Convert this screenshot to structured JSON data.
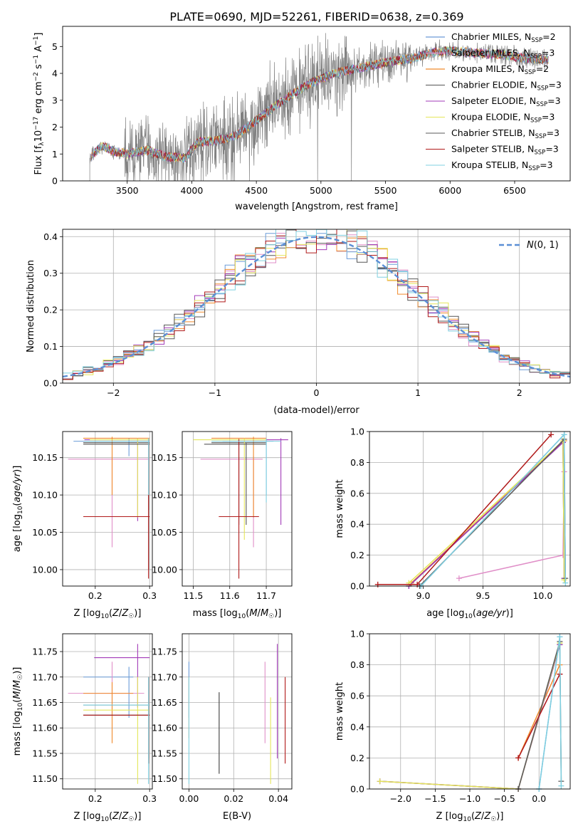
{
  "title": "PLATE=0690, MJD=52261, FIBERID=0638, z=0.369",
  "series": [
    {
      "name": "Chabrier MILES",
      "nssp": "2",
      "color": "#6a9bd8"
    },
    {
      "name": "Salpeter MILES",
      "nssp": "3",
      "color": "#e08fc8"
    },
    {
      "name": "Kroupa MILES",
      "nssp": "2",
      "color": "#f08a2c"
    },
    {
      "name": "Chabrier ELODIE",
      "nssp": "3",
      "color": "#555555"
    },
    {
      "name": "Salpeter ELODIE",
      "nssp": "3",
      "color": "#a23ab8"
    },
    {
      "name": "Kroupa ELODIE",
      "nssp": "3",
      "color": "#e5e65a"
    },
    {
      "name": "Chabrier STELIB",
      "nssp": "3",
      "color": "#5a5a5a"
    },
    {
      "name": "Salpeter STELIB",
      "nssp": "3",
      "color": "#b01a1a"
    },
    {
      "name": "Kroupa STELIB",
      "nssp": "3",
      "color": "#7fd0e0"
    }
  ],
  "legend_nssp_label": "N",
  "legend_nssp_sub": "SSP",
  "chart_data": [
    {
      "id": "spectrum",
      "type": "line",
      "title": "PLATE=0690, MJD=52261, FIBERID=0638, z=0.369",
      "xlabel": "wavelength [Angstrom, rest frame]",
      "ylabel": "Flux [f_λ 10^-17 erg cm^-2 s^-1 A^-1]",
      "xlim": [
        3000,
        6930
      ],
      "ylim": [
        0,
        5.75
      ],
      "xticks": [
        3500,
        4000,
        4500,
        5000,
        5500,
        6000,
        6500
      ],
      "yticks": [
        0,
        1,
        2,
        3,
        4,
        5
      ],
      "data_color": "#808080",
      "data_x_range": [
        3210,
        6760
      ],
      "continuum": [
        [
          3210,
          0.85
        ],
        [
          3300,
          1.3
        ],
        [
          3400,
          1.1
        ],
        [
          3500,
          1.0
        ],
        [
          3650,
          1.15
        ],
        [
          3800,
          0.9
        ],
        [
          3950,
          0.85
        ],
        [
          4050,
          1.45
        ],
        [
          4200,
          1.5
        ],
        [
          4350,
          1.7
        ],
        [
          4500,
          2.25
        ],
        [
          4650,
          2.8
        ],
        [
          4800,
          3.3
        ],
        [
          4950,
          3.7
        ],
        [
          5100,
          4.0
        ],
        [
          5250,
          4.15
        ],
        [
          5400,
          4.3
        ],
        [
          5550,
          4.45
        ],
        [
          5700,
          4.55
        ],
        [
          5850,
          4.75
        ],
        [
          6000,
          4.85
        ],
        [
          6200,
          4.75
        ],
        [
          6400,
          4.7
        ],
        [
          6600,
          4.55
        ],
        [
          6760,
          4.5
        ]
      ],
      "legend": "top-right",
      "grid": false
    },
    {
      "id": "residuals",
      "type": "histogram",
      "xlabel": "(data-model)/error",
      "ylabel": "Normed distribution",
      "xlim": [
        -2.5,
        2.5
      ],
      "ylim": [
        0,
        0.42
      ],
      "xticks": [
        -2,
        -1,
        0,
        1,
        2
      ],
      "yticks": [
        0.0,
        0.1,
        0.2,
        0.3,
        0.4
      ],
      "bin_width": 0.1,
      "reference_label": "N(0,1)",
      "reference_color": "#5b8fd6",
      "legend": "top-right",
      "grid": true
    },
    {
      "id": "age_vs_Z",
      "type": "errorbar",
      "xlabel": "Z [log10(Z/Z☉)]",
      "ylabel": "age  [log10(age/yr)]",
      "xlim": [
        0.14,
        0.305
      ],
      "ylim": [
        9.978,
        10.185
      ],
      "xticks": [
        0.2,
        0.3
      ],
      "yticks": [
        10.0,
        10.05,
        10.1,
        10.15
      ],
      "points": [
        {
          "s": 0,
          "x": 0.262,
          "y": 10.172,
          "xe": [
            0.16,
            0.3
          ],
          "ye": [
            10.152,
            10.176
          ]
        },
        {
          "s": 1,
          "x": 0.231,
          "y": 10.148,
          "xe": [
            0.15,
            0.3
          ],
          "ye": [
            10.03,
            10.152
          ]
        },
        {
          "s": 2,
          "x": 0.231,
          "y": 10.176,
          "xe": [
            0.178,
            0.3
          ],
          "ye": [
            10.1,
            10.178
          ]
        },
        {
          "s": 3,
          "x": 0.298,
          "y": 10.17,
          "xe": [
            0.178,
            0.3
          ],
          "ye": [
            10.0,
            10.17
          ]
        },
        {
          "s": 4,
          "x": 0.278,
          "y": 10.174,
          "xe": [
            0.18,
            0.3
          ],
          "ye": [
            10.065,
            10.176
          ]
        },
        {
          "s": 5,
          "x": 0.278,
          "y": 10.174,
          "xe": [
            0.19,
            0.3
          ],
          "ye": [
            10.07,
            10.176
          ]
        },
        {
          "s": 6,
          "x": 0.298,
          "y": 10.168,
          "xe": [
            0.178,
            0.3
          ],
          "ye": [
            10.08,
            10.17
          ]
        },
        {
          "s": 7,
          "x": 0.298,
          "y": 10.071,
          "xe": [
            0.178,
            0.3
          ],
          "ye": [
            9.988,
            10.175
          ]
        },
        {
          "s": 8,
          "x": 0.298,
          "y": 10.172,
          "xe": [
            0.18,
            0.3
          ],
          "ye": [
            10.1,
            10.176
          ]
        }
      ],
      "grid": true
    },
    {
      "id": "age_vs_mass",
      "type": "errorbar",
      "xlabel": "mass [log10(M/M☉)]",
      "ylabel": "",
      "xlim": [
        11.47,
        11.77
      ],
      "ylim": [
        9.978,
        10.185
      ],
      "xticks": [
        11.5,
        11.6,
        11.7
      ],
      "yticks": [
        10.0,
        10.05,
        10.1,
        10.15
      ],
      "points": [
        {
          "s": 0,
          "x": 11.7,
          "y": 10.172,
          "xe": [
            11.58,
            11.72
          ],
          "ye": [
            10.1,
            10.176
          ]
        },
        {
          "s": 1,
          "x": 11.665,
          "y": 10.148,
          "xe": [
            11.52,
            11.69
          ],
          "ye": [
            10.03,
            10.152
          ]
        },
        {
          "s": 2,
          "x": 11.665,
          "y": 10.176,
          "xe": [
            11.55,
            11.7
          ],
          "ye": [
            10.07,
            10.178
          ]
        },
        {
          "s": 3,
          "x": 11.645,
          "y": 10.17,
          "xe": [
            11.55,
            11.7
          ],
          "ye": [
            10.06,
            10.17
          ]
        },
        {
          "s": 4,
          "x": 11.74,
          "y": 10.174,
          "xe": [
            11.62,
            11.76
          ],
          "ye": [
            10.06,
            10.176
          ]
        },
        {
          "s": 5,
          "x": 11.64,
          "y": 10.174,
          "xe": [
            11.5,
            11.7
          ],
          "ye": [
            10.04,
            10.176
          ]
        },
        {
          "s": 6,
          "x": 11.625,
          "y": 10.168,
          "xe": [
            11.53,
            11.7
          ],
          "ye": [
            10.06,
            10.17
          ]
        },
        {
          "s": 7,
          "x": 11.625,
          "y": 10.071,
          "xe": [
            11.57,
            11.68
          ],
          "ye": [
            9.988,
            10.175
          ]
        },
        {
          "s": 8,
          "x": 11.7,
          "y": 10.172,
          "xe": [
            11.55,
            11.74
          ],
          "ye": [
            10.09,
            10.176
          ]
        }
      ],
      "grid": true
    },
    {
      "id": "mass_weight_vs_age",
      "type": "line",
      "xlabel": "age  [log10(age/yr)]",
      "ylabel": "mass weight",
      "xlim": [
        8.55,
        10.23
      ],
      "ylim": [
        0,
        1.0
      ],
      "xticks": [
        9.0,
        9.5,
        10.0
      ],
      "yticks": [
        0.0,
        0.2,
        0.4,
        0.6,
        0.8,
        1.0
      ],
      "lines": [
        {
          "s": 0,
          "pts": [
            [
              8.98,
              0.0
            ],
            [
              10.18,
              0.98
            ]
          ]
        },
        {
          "s": 1,
          "pts": [
            [
              9.3,
              0.05
            ],
            [
              10.17,
              0.2
            ],
            [
              10.18,
              0.74
            ]
          ]
        },
        {
          "s": 2,
          "pts": [
            [
              8.9,
              0.02
            ],
            [
              10.18,
              0.94
            ]
          ]
        },
        {
          "s": 3,
          "pts": [
            [
              8.88,
              0.0
            ],
            [
              10.17,
              0.93
            ],
            [
              10.18,
              0.05
            ]
          ]
        },
        {
          "s": 4,
          "pts": [
            [
              8.88,
              0.0
            ],
            [
              10.17,
              0.93
            ],
            [
              10.18,
              0.05
            ]
          ]
        },
        {
          "s": 5,
          "pts": [
            [
              8.88,
              0.02
            ],
            [
              10.17,
              0.94
            ],
            [
              10.18,
              0.04
            ]
          ]
        },
        {
          "s": 6,
          "pts": [
            [
              8.97,
              0.0
            ],
            [
              10.18,
              0.95
            ],
            [
              10.19,
              0.05
            ]
          ]
        },
        {
          "s": 7,
          "pts": [
            [
              8.62,
              0.01
            ],
            [
              8.95,
              0.01
            ],
            [
              10.07,
              0.98
            ]
          ]
        },
        {
          "s": 8,
          "pts": [
            [
              8.98,
              0.0
            ],
            [
              10.18,
              0.98
            ],
            [
              10.19,
              0.02
            ]
          ]
        }
      ],
      "grid": true
    },
    {
      "id": "mass_vs_Z",
      "type": "errorbar",
      "xlabel": "Z [log10(Z/Z☉)]",
      "ylabel": "mass [log10(M/M☉)]",
      "xlim": [
        0.14,
        0.305
      ],
      "ylim": [
        11.48,
        11.785
      ],
      "xticks": [
        0.2,
        0.3
      ],
      "yticks": [
        11.5,
        11.55,
        11.6,
        11.65,
        11.7,
        11.75
      ],
      "points": [
        {
          "s": 0,
          "x": 0.262,
          "y": 11.7,
          "xe": [
            0.178,
            0.27
          ],
          "ye": [
            11.62,
            11.72
          ]
        },
        {
          "s": 1,
          "x": 0.231,
          "y": 11.668,
          "xe": [
            0.15,
            0.29
          ],
          "ye": [
            11.62,
            11.73
          ]
        },
        {
          "s": 2,
          "x": 0.231,
          "y": 11.668,
          "xe": [
            0.178,
            0.27
          ],
          "ye": [
            11.57,
            11.69
          ]
        },
        {
          "s": 3,
          "x": 0.298,
          "y": 11.645,
          "xe": [
            0.178,
            0.3
          ],
          "ye": [
            11.53,
            11.7
          ]
        },
        {
          "s": 4,
          "x": 0.278,
          "y": 11.738,
          "xe": [
            0.198,
            0.3
          ],
          "ye": [
            11.64,
            11.765
          ]
        },
        {
          "s": 5,
          "x": 0.278,
          "y": 11.635,
          "xe": [
            0.178,
            0.3
          ],
          "ye": [
            11.49,
            11.7
          ]
        },
        {
          "s": 6,
          "x": 0.298,
          "y": 11.625,
          "xe": [
            0.178,
            0.3
          ],
          "ye": [
            11.54,
            11.7
          ]
        },
        {
          "s": 7,
          "x": 0.298,
          "y": 11.625,
          "xe": [
            0.178,
            0.3
          ],
          "ye": [
            11.53,
            11.7
          ]
        },
        {
          "s": 8,
          "x": 0.298,
          "y": 11.645,
          "xe": [
            0.178,
            0.3
          ],
          "ye": [
            11.49,
            11.7
          ]
        }
      ],
      "grid": true
    },
    {
      "id": "mass_vs_ebv",
      "type": "errorbar",
      "xlabel": "E(B-V)",
      "ylabel": "",
      "xlim": [
        -0.003,
        0.046
      ],
      "ylim": [
        11.48,
        11.785
      ],
      "xticks": [
        0.0,
        0.02,
        0.04
      ],
      "yticks": [
        11.5,
        11.55,
        11.6,
        11.65,
        11.7,
        11.75
      ],
      "points": [
        {
          "s": 0,
          "x": 0.0,
          "y": 11.7,
          "xe": [
            0.0,
            0.0
          ],
          "ye": [
            11.62,
            11.73
          ]
        },
        {
          "s": 1,
          "x": 0.034,
          "y": 11.668,
          "xe": [
            0.034,
            0.034
          ],
          "ye": [
            11.57,
            11.73
          ]
        },
        {
          "s": 2,
          "x": 0.0,
          "y": 11.668,
          "xe": [
            0.0,
            0.0
          ],
          "ye": [
            11.58,
            11.7
          ]
        },
        {
          "s": 3,
          "x": 0.0135,
          "y": 11.645,
          "xe": [
            0.0135,
            0.0135
          ],
          "ye": [
            11.51,
            11.67
          ]
        },
        {
          "s": 4,
          "x": 0.0395,
          "y": 11.738,
          "xe": [
            0.0395,
            0.0395
          ],
          "ye": [
            11.54,
            11.765
          ]
        },
        {
          "s": 5,
          "x": 0.0365,
          "y": 11.635,
          "xe": [
            0.0365,
            0.0365
          ],
          "ye": [
            11.49,
            11.66
          ]
        },
        {
          "s": 6,
          "x": 0.0135,
          "y": 11.625,
          "xe": [
            0.0135,
            0.0135
          ],
          "ye": [
            11.51,
            11.67
          ]
        },
        {
          "s": 7,
          "x": 0.043,
          "y": 11.625,
          "xe": [
            0.043,
            0.043
          ],
          "ye": [
            11.53,
            11.7
          ]
        },
        {
          "s": 8,
          "x": 0.0,
          "y": 11.645,
          "xe": [
            0.0,
            0.0
          ],
          "ye": [
            11.49,
            11.7
          ]
        }
      ],
      "grid": true
    },
    {
      "id": "mass_weight_vs_Z",
      "type": "line",
      "xlabel": "Z [log10(Z/Z☉)]",
      "ylabel": "mass weight",
      "xlim": [
        -2.45,
        0.45
      ],
      "ylim": [
        0,
        1.0
      ],
      "xticks": [
        -2.0,
        -1.5,
        -1.0,
        -0.5,
        0.0
      ],
      "yticks": [
        0.0,
        0.2,
        0.4,
        0.6,
        0.8,
        1.0
      ],
      "lines": [
        {
          "s": 0,
          "pts": [
            [
              0.0,
              0.0
            ],
            [
              0.3,
              0.98
            ]
          ]
        },
        {
          "s": 1,
          "pts": [
            [
              -0.3,
              0.2
            ],
            [
              0.3,
              0.74
            ]
          ]
        },
        {
          "s": 2,
          "pts": [
            [
              -0.3,
              0.2
            ],
            [
              0.3,
              0.8
            ]
          ]
        },
        {
          "s": 3,
          "pts": [
            [
              -2.3,
              0.05
            ],
            [
              -0.3,
              0.0
            ],
            [
              0.3,
              0.93
            ]
          ]
        },
        {
          "s": 4,
          "pts": [
            [
              -2.3,
              0.05
            ],
            [
              -0.3,
              0.0
            ],
            [
              0.3,
              0.93
            ]
          ]
        },
        {
          "s": 5,
          "pts": [
            [
              -2.3,
              0.05
            ],
            [
              -0.3,
              0.0
            ],
            [
              0.3,
              0.94
            ]
          ]
        },
        {
          "s": 6,
          "pts": [
            [
              -0.3,
              0.0
            ],
            [
              0.3,
              0.95
            ],
            [
              0.32,
              0.05
            ]
          ]
        },
        {
          "s": 7,
          "pts": [
            [
              -0.3,
              0.2
            ],
            [
              0.3,
              0.74
            ]
          ]
        },
        {
          "s": 8,
          "pts": [
            [
              0.0,
              0.0
            ],
            [
              0.3,
              0.98
            ],
            [
              0.32,
              0.02
            ]
          ]
        }
      ],
      "grid": true
    }
  ]
}
